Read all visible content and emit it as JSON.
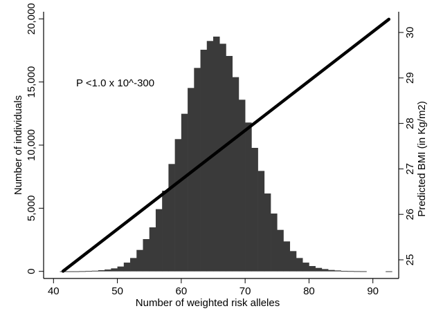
{
  "chart_data": {
    "type": "bar",
    "subtype": "histogram with overlaid line (dual y-axis)",
    "xlabel": "Number of weighted risk alleles",
    "ylabel_left": "Number of individuals",
    "ylabel_right": "Predicted BMI (in Kg/m2)",
    "annotation": "P <1.0 x 10^-300",
    "xlim": [
      40,
      93
    ],
    "ylim_left": [
      0,
      20000
    ],
    "ylim_right": [
      24.75,
      30.3
    ],
    "x_ticks": [
      "40",
      "50",
      "60",
      "70",
      "80",
      "90"
    ],
    "x_tick_values": [
      40,
      50,
      60,
      70,
      80,
      90
    ],
    "y_left_ticks": [
      "0",
      "5,000",
      "10,000",
      "15,000",
      "20,000"
    ],
    "y_left_tick_values": [
      0,
      5000,
      10000,
      15000,
      20000
    ],
    "y_right_ticks": [
      "25",
      "26",
      "27",
      "28",
      "29",
      "30"
    ],
    "y_right_tick_values": [
      25,
      26,
      27,
      28,
      29,
      30
    ],
    "grid": false,
    "bar_color": "#3a3a3a",
    "line_color": "#000000",
    "histogram": {
      "bin_width": 1,
      "bin_starts": [
        41,
        42,
        43,
        44,
        45,
        46,
        47,
        48,
        49,
        50,
        51,
        52,
        53,
        54,
        55,
        56,
        57,
        58,
        59,
        60,
        61,
        62,
        63,
        64,
        65,
        66,
        67,
        68,
        69,
        70,
        71,
        72,
        73,
        74,
        75,
        76,
        77,
        78,
        79,
        80,
        81,
        82,
        83,
        84,
        85,
        86,
        87,
        88,
        92
      ],
      "values": [
        5,
        5,
        5,
        15,
        30,
        50,
        91,
        146,
        237,
        383,
        693,
        1058,
        1697,
        2555,
        3485,
        4927,
        6387,
        8504,
        10475,
        12482,
        14526,
        16113,
        17555,
        18248,
        18595,
        18029,
        17062,
        15383,
        13595,
        11788,
        9781,
        7956,
        6168,
        4580,
        3285,
        2372,
        1606,
        1058,
        693,
        420,
        274,
        182,
        110,
        73,
        35,
        25,
        15,
        10,
        5
      ]
    },
    "line": {
      "name": "Predicted BMI",
      "x": [
        41.5,
        92.5
      ],
      "y": [
        24.75,
        30.29
      ]
    }
  }
}
